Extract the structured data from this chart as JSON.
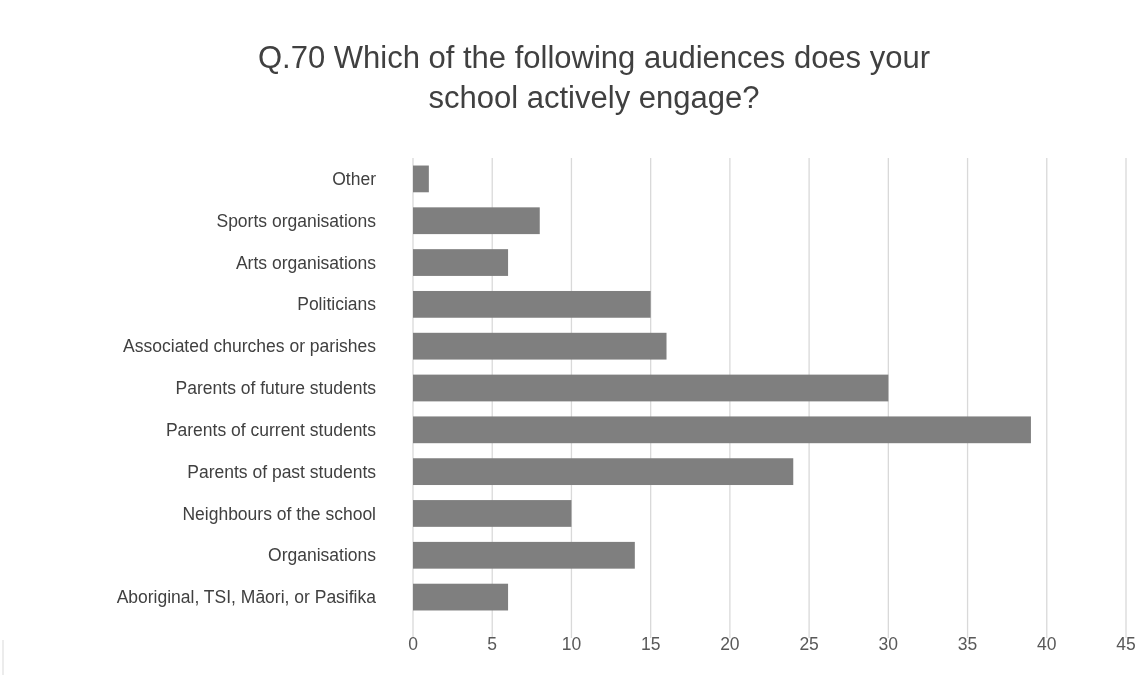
{
  "chart_data": {
    "type": "bar",
    "orientation": "horizontal",
    "title": "Q.70 Which of the following audiences does your school actively engage?",
    "categories": [
      "Other",
      "Sports organisations",
      "Arts organisations",
      "Politicians",
      "Associated churches or parishes",
      "Parents of future students",
      "Parents of current students",
      "Parents of past students",
      "Neighbours of the school",
      "Organisations",
      "Aboriginal, TSI, Māori, or Pasifika"
    ],
    "values": [
      1,
      8,
      6,
      15,
      16,
      30,
      39,
      24,
      10,
      14,
      6
    ],
    "color": "#7f7f7f",
    "xlim": [
      0,
      45
    ],
    "xticks": [
      0,
      5,
      10,
      15,
      20,
      25,
      30,
      35,
      40,
      45
    ],
    "grid": "x"
  }
}
